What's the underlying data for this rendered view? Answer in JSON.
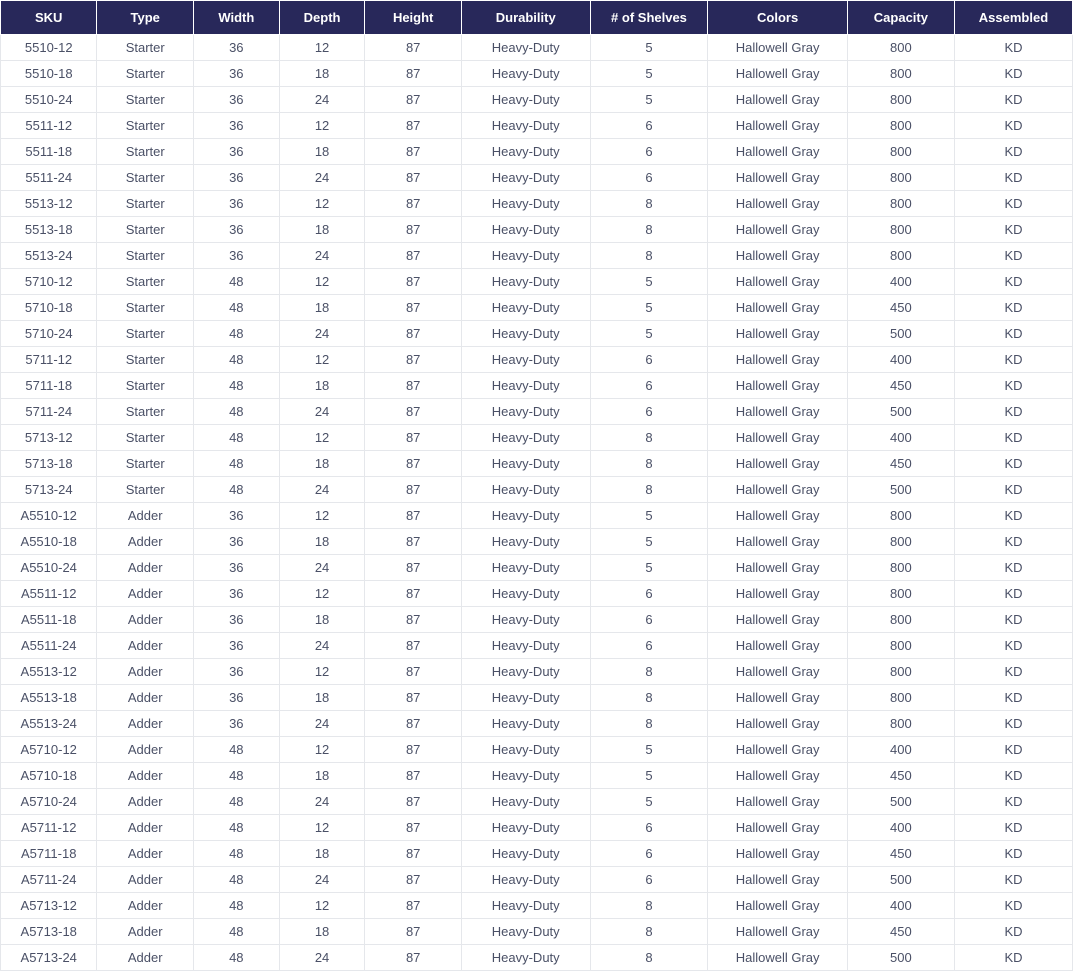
{
  "table": {
    "type": "table",
    "header_bg": "#28285a",
    "header_fg": "#ffffff",
    "header_fontsize": 13,
    "header_fontweight": "bold",
    "cell_fg": "#4a5066",
    "cell_fontsize": 13,
    "border_color": "#e5e7eb",
    "background_color": "#ffffff",
    "columns": [
      {
        "label": "SKU",
        "width": "9%"
      },
      {
        "label": "Type",
        "width": "9%"
      },
      {
        "label": "Width",
        "width": "8%"
      },
      {
        "label": "Depth",
        "width": "8%"
      },
      {
        "label": "Height",
        "width": "9%"
      },
      {
        "label": "Durability",
        "width": "12%"
      },
      {
        "label": "# of Shelves",
        "width": "11%"
      },
      {
        "label": "Colors",
        "width": "13%"
      },
      {
        "label": "Capacity",
        "width": "10%"
      },
      {
        "label": "Assembled",
        "width": "11%"
      }
    ],
    "rows": [
      [
        "5510-12",
        "Starter",
        "36",
        "12",
        "87",
        "Heavy-Duty",
        "5",
        "Hallowell Gray",
        "800",
        "KD"
      ],
      [
        "5510-18",
        "Starter",
        "36",
        "18",
        "87",
        "Heavy-Duty",
        "5",
        "Hallowell Gray",
        "800",
        "KD"
      ],
      [
        "5510-24",
        "Starter",
        "36",
        "24",
        "87",
        "Heavy-Duty",
        "5",
        "Hallowell Gray",
        "800",
        "KD"
      ],
      [
        "5511-12",
        "Starter",
        "36",
        "12",
        "87",
        "Heavy-Duty",
        "6",
        "Hallowell Gray",
        "800",
        "KD"
      ],
      [
        "5511-18",
        "Starter",
        "36",
        "18",
        "87",
        "Heavy-Duty",
        "6",
        "Hallowell Gray",
        "800",
        "KD"
      ],
      [
        "5511-24",
        "Starter",
        "36",
        "24",
        "87",
        "Heavy-Duty",
        "6",
        "Hallowell Gray",
        "800",
        "KD"
      ],
      [
        "5513-12",
        "Starter",
        "36",
        "12",
        "87",
        "Heavy-Duty",
        "8",
        "Hallowell Gray",
        "800",
        "KD"
      ],
      [
        "5513-18",
        "Starter",
        "36",
        "18",
        "87",
        "Heavy-Duty",
        "8",
        "Hallowell Gray",
        "800",
        "KD"
      ],
      [
        "5513-24",
        "Starter",
        "36",
        "24",
        "87",
        "Heavy-Duty",
        "8",
        "Hallowell Gray",
        "800",
        "KD"
      ],
      [
        "5710-12",
        "Starter",
        "48",
        "12",
        "87",
        "Heavy-Duty",
        "5",
        "Hallowell Gray",
        "400",
        "KD"
      ],
      [
        "5710-18",
        "Starter",
        "48",
        "18",
        "87",
        "Heavy-Duty",
        "5",
        "Hallowell Gray",
        "450",
        "KD"
      ],
      [
        "5710-24",
        "Starter",
        "48",
        "24",
        "87",
        "Heavy-Duty",
        "5",
        "Hallowell Gray",
        "500",
        "KD"
      ],
      [
        "5711-12",
        "Starter",
        "48",
        "12",
        "87",
        "Heavy-Duty",
        "6",
        "Hallowell Gray",
        "400",
        "KD"
      ],
      [
        "5711-18",
        "Starter",
        "48",
        "18",
        "87",
        "Heavy-Duty",
        "6",
        "Hallowell Gray",
        "450",
        "KD"
      ],
      [
        "5711-24",
        "Starter",
        "48",
        "24",
        "87",
        "Heavy-Duty",
        "6",
        "Hallowell Gray",
        "500",
        "KD"
      ],
      [
        "5713-12",
        "Starter",
        "48",
        "12",
        "87",
        "Heavy-Duty",
        "8",
        "Hallowell Gray",
        "400",
        "KD"
      ],
      [
        "5713-18",
        "Starter",
        "48",
        "18",
        "87",
        "Heavy-Duty",
        "8",
        "Hallowell Gray",
        "450",
        "KD"
      ],
      [
        "5713-24",
        "Starter",
        "48",
        "24",
        "87",
        "Heavy-Duty",
        "8",
        "Hallowell Gray",
        "500",
        "KD"
      ],
      [
        "A5510-12",
        "Adder",
        "36",
        "12",
        "87",
        "Heavy-Duty",
        "5",
        "Hallowell Gray",
        "800",
        "KD"
      ],
      [
        "A5510-18",
        "Adder",
        "36",
        "18",
        "87",
        "Heavy-Duty",
        "5",
        "Hallowell Gray",
        "800",
        "KD"
      ],
      [
        "A5510-24",
        "Adder",
        "36",
        "24",
        "87",
        "Heavy-Duty",
        "5",
        "Hallowell Gray",
        "800",
        "KD"
      ],
      [
        "A5511-12",
        "Adder",
        "36",
        "12",
        "87",
        "Heavy-Duty",
        "6",
        "Hallowell Gray",
        "800",
        "KD"
      ],
      [
        "A5511-18",
        "Adder",
        "36",
        "18",
        "87",
        "Heavy-Duty",
        "6",
        "Hallowell Gray",
        "800",
        "KD"
      ],
      [
        "A5511-24",
        "Adder",
        "36",
        "24",
        "87",
        "Heavy-Duty",
        "6",
        "Hallowell Gray",
        "800",
        "KD"
      ],
      [
        "A5513-12",
        "Adder",
        "36",
        "12",
        "87",
        "Heavy-Duty",
        "8",
        "Hallowell Gray",
        "800",
        "KD"
      ],
      [
        "A5513-18",
        "Adder",
        "36",
        "18",
        "87",
        "Heavy-Duty",
        "8",
        "Hallowell Gray",
        "800",
        "KD"
      ],
      [
        "A5513-24",
        "Adder",
        "36",
        "24",
        "87",
        "Heavy-Duty",
        "8",
        "Hallowell Gray",
        "800",
        "KD"
      ],
      [
        "A5710-12",
        "Adder",
        "48",
        "12",
        "87",
        "Heavy-Duty",
        "5",
        "Hallowell Gray",
        "400",
        "KD"
      ],
      [
        "A5710-18",
        "Adder",
        "48",
        "18",
        "87",
        "Heavy-Duty",
        "5",
        "Hallowell Gray",
        "450",
        "KD"
      ],
      [
        "A5710-24",
        "Adder",
        "48",
        "24",
        "87",
        "Heavy-Duty",
        "5",
        "Hallowell Gray",
        "500",
        "KD"
      ],
      [
        "A5711-12",
        "Adder",
        "48",
        "12",
        "87",
        "Heavy-Duty",
        "6",
        "Hallowell Gray",
        "400",
        "KD"
      ],
      [
        "A5711-18",
        "Adder",
        "48",
        "18",
        "87",
        "Heavy-Duty",
        "6",
        "Hallowell Gray",
        "450",
        "KD"
      ],
      [
        "A5711-24",
        "Adder",
        "48",
        "24",
        "87",
        "Heavy-Duty",
        "6",
        "Hallowell Gray",
        "500",
        "KD"
      ],
      [
        "A5713-12",
        "Adder",
        "48",
        "12",
        "87",
        "Heavy-Duty",
        "8",
        "Hallowell Gray",
        "400",
        "KD"
      ],
      [
        "A5713-18",
        "Adder",
        "48",
        "18",
        "87",
        "Heavy-Duty",
        "8",
        "Hallowell Gray",
        "450",
        "KD"
      ],
      [
        "A5713-24",
        "Adder",
        "48",
        "24",
        "87",
        "Heavy-Duty",
        "8",
        "Hallowell Gray",
        "500",
        "KD"
      ]
    ]
  }
}
